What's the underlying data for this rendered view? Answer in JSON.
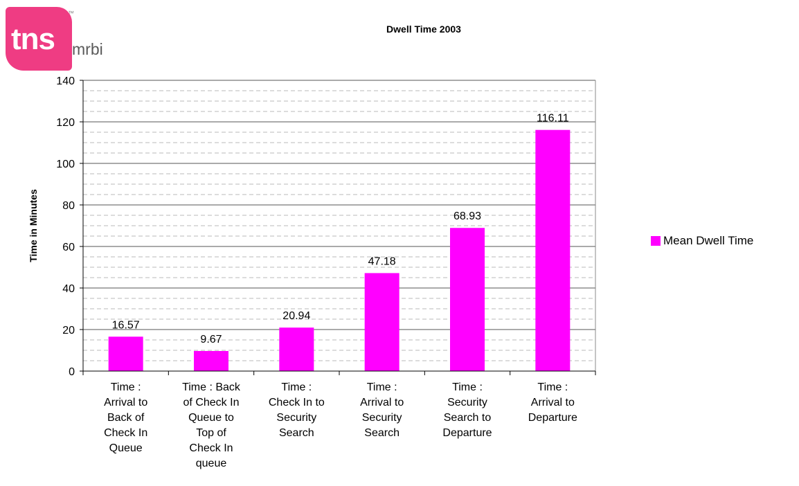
{
  "logo": {
    "brand": "tns",
    "sub": "mrbi",
    "tm": "™"
  },
  "chart_data": {
    "type": "bar",
    "title": "Dwell Time 2003",
    "ylabel": "Time in Minutes",
    "xlabel": "",
    "ylim": [
      0,
      140
    ],
    "yticks": [
      0,
      20,
      40,
      60,
      80,
      100,
      120,
      140
    ],
    "grid": true,
    "legend_position": "right",
    "categories": [
      [
        "Time :",
        "Arrival to",
        "Back of",
        "Check In",
        "Queue"
      ],
      [
        "Time : Back",
        "of Check In",
        "Queue to",
        "Top of",
        "Check In",
        "queue"
      ],
      [
        "Time :",
        "Check In to",
        "Security",
        "Search"
      ],
      [
        "Time :",
        "Arrival to",
        "Security",
        "Search"
      ],
      [
        "Time :",
        "Security",
        "Search to",
        "Departure"
      ],
      [
        "Time :",
        "Arrival to",
        "Departure"
      ]
    ],
    "series": [
      {
        "name": "Mean Dwell Time",
        "color": "#ff00ff",
        "values": [
          16.57,
          9.67,
          20.94,
          47.18,
          68.93,
          116.11
        ],
        "labels": [
          "16.57",
          "9.67",
          "20.94",
          "47.18",
          "68.93",
          "116.11"
        ]
      }
    ]
  }
}
